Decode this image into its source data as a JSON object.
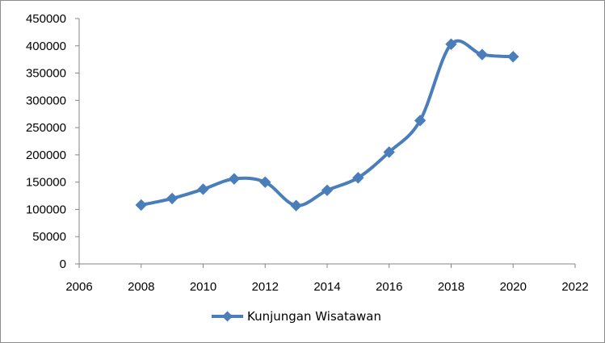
{
  "chart_data": {
    "type": "line",
    "title": "",
    "xlabel": "",
    "ylabel": "",
    "xlim": [
      2006,
      2022
    ],
    "ylim": [
      0,
      450000
    ],
    "x_ticks": [
      "2006",
      "2008",
      "2010",
      "2012",
      "2014",
      "2016",
      "2018",
      "2020",
      "2022"
    ],
    "y_ticks": [
      "0",
      "50000",
      "100000",
      "150000",
      "200000",
      "250000",
      "300000",
      "350000",
      "400000",
      "450000"
    ],
    "grid": false,
    "legend": "bottom",
    "smoothed": true,
    "marker": "diamond",
    "series": [
      {
        "name": "Kunjungan Wisatawan",
        "color": "#4a7ebb",
        "x": [
          2008,
          2009,
          2010,
          2011,
          2012,
          2013,
          2014,
          2015,
          2016,
          2017,
          2018,
          2019,
          2020
        ],
        "values": [
          108000,
          120000,
          137000,
          156000,
          150000,
          107000,
          135000,
          158000,
          205000,
          263000,
          403000,
          384000,
          380000
        ]
      }
    ]
  }
}
